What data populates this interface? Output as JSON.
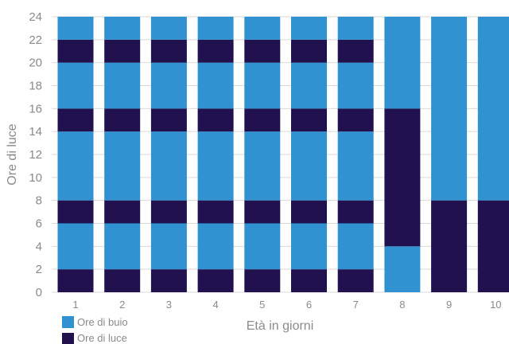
{
  "chart_data": {
    "type": "bar",
    "stacked": true,
    "categories": [
      "1",
      "2",
      "3",
      "4",
      "5",
      "6",
      "7",
      "8",
      "9",
      "10"
    ],
    "xlabel": "Età in giorni",
    "ylabel": "Ore di luce",
    "ylim": [
      0,
      24
    ],
    "yticks": [
      0,
      2,
      4,
      6,
      8,
      10,
      12,
      14,
      16,
      18,
      20,
      22,
      24
    ],
    "grid": true,
    "legend_position": "bottom-left",
    "colors": {
      "dark": "#3192d1",
      "light": "#21124f",
      "grid": "#d9d9d9"
    },
    "series": [
      {
        "name": "Ore di buio"
      },
      {
        "name": "Ore di luce"
      }
    ],
    "segments": [
      [
        {
          "s": "light",
          "v": 2
        },
        {
          "s": "dark",
          "v": 4
        },
        {
          "s": "light",
          "v": 2
        },
        {
          "s": "dark",
          "v": 6
        },
        {
          "s": "light",
          "v": 2
        },
        {
          "s": "dark",
          "v": 4
        },
        {
          "s": "light",
          "v": 2
        },
        {
          "s": "dark",
          "v": 2
        }
      ],
      [
        {
          "s": "light",
          "v": 2
        },
        {
          "s": "dark",
          "v": 4
        },
        {
          "s": "light",
          "v": 2
        },
        {
          "s": "dark",
          "v": 6
        },
        {
          "s": "light",
          "v": 2
        },
        {
          "s": "dark",
          "v": 4
        },
        {
          "s": "light",
          "v": 2
        },
        {
          "s": "dark",
          "v": 2
        }
      ],
      [
        {
          "s": "light",
          "v": 2
        },
        {
          "s": "dark",
          "v": 4
        },
        {
          "s": "light",
          "v": 2
        },
        {
          "s": "dark",
          "v": 6
        },
        {
          "s": "light",
          "v": 2
        },
        {
          "s": "dark",
          "v": 4
        },
        {
          "s": "light",
          "v": 2
        },
        {
          "s": "dark",
          "v": 2
        }
      ],
      [
        {
          "s": "light",
          "v": 2
        },
        {
          "s": "dark",
          "v": 4
        },
        {
          "s": "light",
          "v": 2
        },
        {
          "s": "dark",
          "v": 6
        },
        {
          "s": "light",
          "v": 2
        },
        {
          "s": "dark",
          "v": 4
        },
        {
          "s": "light",
          "v": 2
        },
        {
          "s": "dark",
          "v": 2
        }
      ],
      [
        {
          "s": "light",
          "v": 2
        },
        {
          "s": "dark",
          "v": 4
        },
        {
          "s": "light",
          "v": 2
        },
        {
          "s": "dark",
          "v": 6
        },
        {
          "s": "light",
          "v": 2
        },
        {
          "s": "dark",
          "v": 4
        },
        {
          "s": "light",
          "v": 2
        },
        {
          "s": "dark",
          "v": 2
        }
      ],
      [
        {
          "s": "light",
          "v": 2
        },
        {
          "s": "dark",
          "v": 4
        },
        {
          "s": "light",
          "v": 2
        },
        {
          "s": "dark",
          "v": 6
        },
        {
          "s": "light",
          "v": 2
        },
        {
          "s": "dark",
          "v": 4
        },
        {
          "s": "light",
          "v": 2
        },
        {
          "s": "dark",
          "v": 2
        }
      ],
      [
        {
          "s": "light",
          "v": 2
        },
        {
          "s": "dark",
          "v": 4
        },
        {
          "s": "light",
          "v": 2
        },
        {
          "s": "dark",
          "v": 6
        },
        {
          "s": "light",
          "v": 2
        },
        {
          "s": "dark",
          "v": 4
        },
        {
          "s": "light",
          "v": 2
        },
        {
          "s": "dark",
          "v": 2
        }
      ],
      [
        {
          "s": "dark",
          "v": 4
        },
        {
          "s": "light",
          "v": 12
        },
        {
          "s": "dark",
          "v": 8
        }
      ],
      [
        {
          "s": "light",
          "v": 8
        },
        {
          "s": "dark",
          "v": 16
        }
      ],
      [
        {
          "s": "light",
          "v": 8
        },
        {
          "s": "dark",
          "v": 16
        }
      ]
    ]
  }
}
